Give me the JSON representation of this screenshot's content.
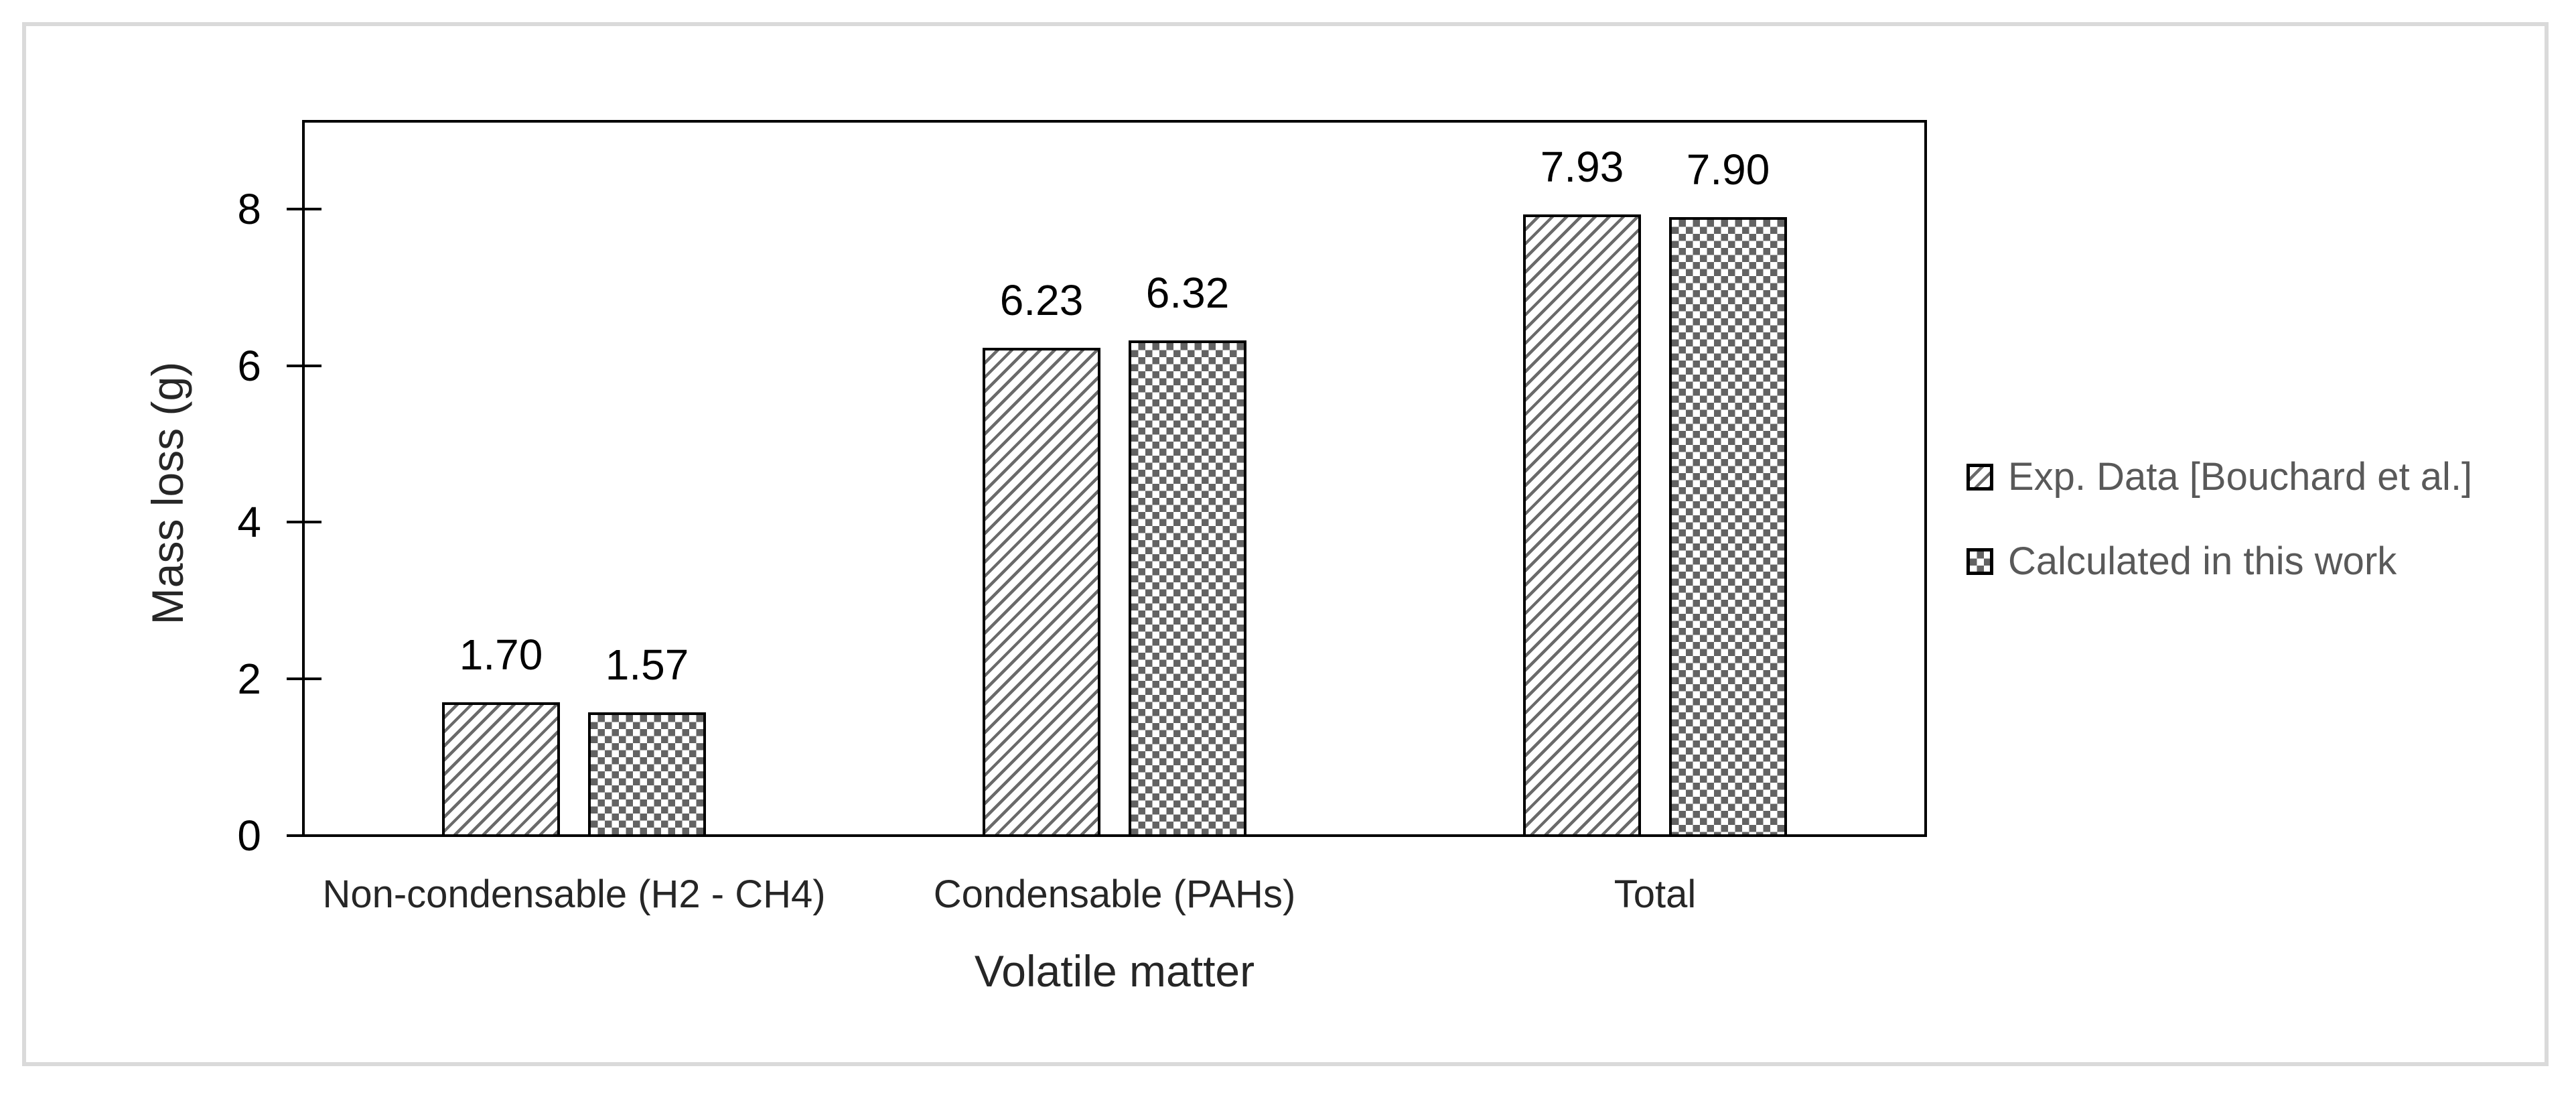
{
  "figure": {
    "background": "#ffffff",
    "border_color": "#dadada"
  },
  "chart_data": {
    "type": "bar",
    "categories": [
      "Non-condensable (H2 - CH4)",
      "Condensable (PAHs)",
      "Total"
    ],
    "series": [
      {
        "name": "Exp. Data [Bouchard et al.]",
        "values": [
          1.7,
          6.23,
          7.93
        ],
        "pattern": "diagonal-hatch",
        "pattern_color": "#6a6a6a"
      },
      {
        "name": "Calculated in this work",
        "values": [
          1.57,
          6.32,
          7.9
        ],
        "pattern": "checkerboard",
        "pattern_color": "#636363"
      }
    ],
    "data_labels": [
      [
        "1.70",
        "1.57"
      ],
      [
        "6.23",
        "6.32"
      ],
      [
        "7.93",
        "7.90"
      ]
    ],
    "xlabel": "Volatile matter",
    "ylabel": "Mass loss (g)",
    "ylim": [
      0,
      9.12
    ],
    "yticks": [
      0,
      2,
      4,
      6,
      8
    ],
    "grid": false,
    "legend_position": "right",
    "axis_color": "#000000",
    "bar_border_color": "#000000"
  }
}
